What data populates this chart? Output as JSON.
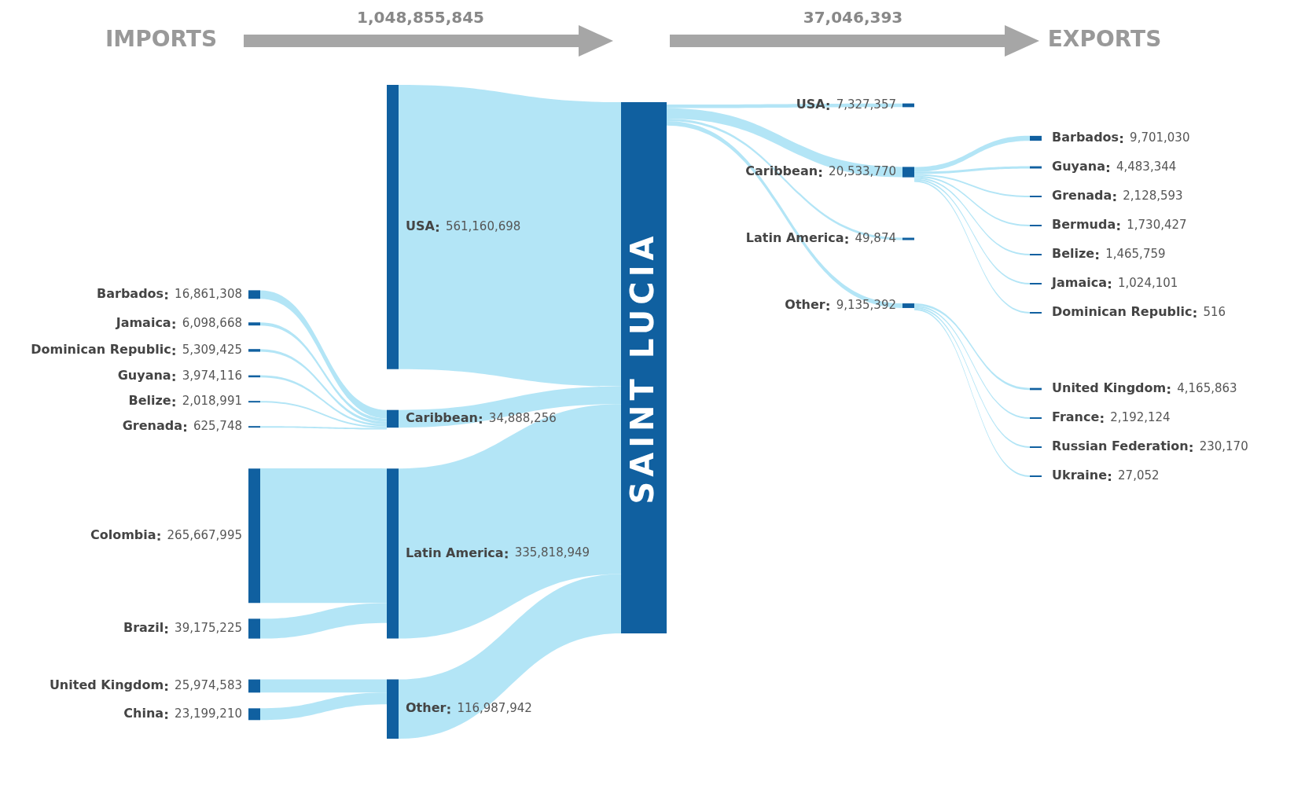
{
  "chart_data": {
    "type": "other",
    "title": "SAINT LUCIA",
    "annotations": [
      "IMPORTS",
      "1,048,855,845",
      "EXPORTS",
      "37,046,393"
    ],
    "categories": [
      "USA",
      "Caribbean",
      "Barbados",
      "Jamaica",
      "Dominican Republic",
      "Guyana",
      "Belize",
      "Grenada",
      "Latin America",
      "Colombia",
      "Brazil",
      "Other",
      "United Kingdom",
      "China",
      "USA",
      "Caribbean",
      "Barbados",
      "Guyana",
      "Grenada",
      "Bermuda",
      "Belize",
      "Jamaica",
      "Dominican Republic",
      "Latin America",
      "Other",
      "United Kingdom",
      "France",
      "Russian Federation",
      "Ukraine"
    ],
    "series": [
      {
        "values": [
          null,
          null,
          16861308,
          6098668,
          5309425,
          3974116,
          2018991,
          625748,
          null,
          265667995,
          39175225,
          null,
          25974583,
          23199210,
          null,
          null,
          null,
          null,
          null,
          null,
          null,
          null,
          null,
          null,
          null,
          null,
          null,
          null,
          null
        ],
        "value_labels": [
          null,
          null,
          "16,861,308",
          "6,098,668",
          "5,309,425",
          "3,974,116",
          "2,018,991",
          "625,748",
          null,
          "265,667,995",
          "39,175,225",
          null,
          "25,974,583",
          "23,199,210",
          null,
          null,
          null,
          null,
          null,
          null,
          null,
          null,
          null,
          null,
          null,
          null,
          null,
          null,
          null
        ]
      },
      {
        "values": [
          561160698,
          34888256,
          null,
          null,
          null,
          null,
          null,
          null,
          335818949,
          null,
          null,
          116987942,
          null,
          null,
          null,
          null,
          null,
          null,
          null,
          null,
          null,
          null,
          null,
          null,
          null,
          null,
          null,
          null,
          null
        ],
        "value_labels": [
          "561,160,698",
          "34,888,256",
          null,
          null,
          null,
          null,
          null,
          null,
          "335,818,949",
          null,
          null,
          "116,987,942",
          null,
          null,
          null,
          null,
          null,
          null,
          null,
          null,
          null,
          null,
          null,
          null,
          null,
          null,
          null,
          null,
          null
        ]
      },
      {
        "values": [
          null,
          null,
          null,
          null,
          null,
          null,
          null,
          null,
          null,
          null,
          null,
          null,
          null,
          null,
          7327357,
          20533770,
          null,
          null,
          null,
          null,
          null,
          null,
          null,
          49874,
          9135392,
          null,
          null,
          null,
          null
        ],
        "value_labels": [
          null,
          null,
          null,
          null,
          null,
          null,
          null,
          null,
          null,
          null,
          null,
          null,
          null,
          null,
          "7,327,357",
          "20,533,770",
          null,
          null,
          null,
          null,
          null,
          null,
          null,
          "49,874",
          "9,135,392",
          null,
          null,
          null,
          null
        ]
      },
      {
        "values": [
          null,
          null,
          null,
          null,
          null,
          null,
          null,
          null,
          null,
          null,
          null,
          null,
          null,
          null,
          null,
          null,
          9701030,
          4483344,
          2128593,
          1730427,
          1465759,
          1024101,
          516,
          null,
          null,
          4165863,
          2192124,
          230170,
          27052
        ],
        "value_labels": [
          null,
          null,
          null,
          null,
          null,
          null,
          null,
          null,
          null,
          null,
          null,
          null,
          null,
          null,
          null,
          null,
          "9,701,030",
          "4,483,344",
          "2,128,593",
          "1,730,427",
          "1,465,759",
          "1,024,101",
          "516",
          null,
          null,
          "4,165,863",
          "2,192,124",
          "230,170",
          "27,052"
        ]
      }
    ]
  }
}
